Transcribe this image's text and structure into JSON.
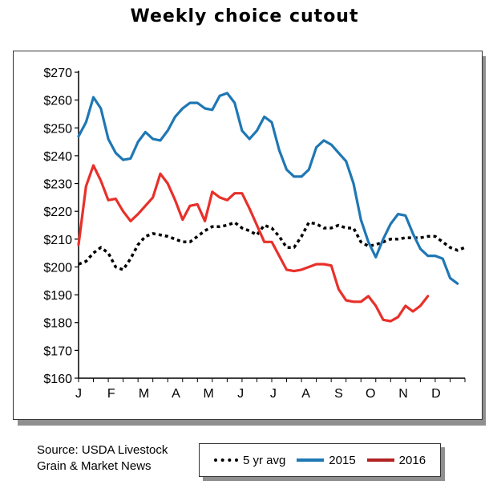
{
  "chart_data": {
    "type": "line",
    "title": "Weekly choice cutout",
    "source_lines": [
      "Source: USDA Livestock",
      "Grain & Market News"
    ],
    "y_ticks": [
      "$270",
      "$260",
      "$250",
      "$240",
      "$230",
      "$220",
      "$210",
      "$200",
      "$190",
      "$180",
      "$170",
      "$160"
    ],
    "ylim": [
      160,
      270
    ],
    "x_ticks": [
      "J",
      "F",
      "M",
      "A",
      "M",
      "J",
      "J",
      "A",
      "S",
      "O",
      "N",
      "D"
    ],
    "xlim": [
      0,
      52
    ],
    "grid": false,
    "legend_position": "bottom-right",
    "series": [
      {
        "name": "5 yr avg",
        "color": "#000000",
        "dash": "dotted",
        "values": [
          201,
          202,
          205,
          207,
          205,
          200,
          199,
          203,
          208,
          211,
          212,
          211.5,
          211,
          210,
          209,
          209,
          211,
          213,
          214.5,
          214.5,
          215,
          216,
          214,
          213,
          211.5,
          215,
          214,
          211,
          207,
          207,
          211,
          216,
          215.5,
          214,
          214,
          215,
          214,
          214,
          209,
          207.5,
          208,
          209,
          210,
          210,
          210.5,
          210.5,
          210.5,
          211,
          211,
          209,
          207,
          206,
          207
        ]
      },
      {
        "name": "2015",
        "color": "#1f77b4",
        "dash": "solid",
        "values": [
          247,
          252,
          261,
          257,
          246,
          241,
          238.5,
          239,
          245,
          248.5,
          246,
          245.5,
          249,
          254,
          257,
          259,
          259,
          257,
          256.5,
          261.5,
          262.5,
          259,
          249,
          246,
          249,
          254,
          252,
          242,
          235,
          232.5,
          232.5,
          235,
          243,
          245.5,
          244,
          241,
          238,
          230,
          217,
          209,
          203.5,
          210,
          215.5,
          219,
          218.5,
          212,
          206.5,
          204,
          204,
          203,
          196,
          194
        ]
      },
      {
        "name": "2016",
        "color": "#e8302a",
        "dash": "solid",
        "values": [
          208,
          229,
          236.5,
          231,
          224,
          224.5,
          220,
          216.5,
          219,
          222,
          225,
          233.5,
          230,
          224,
          217,
          222,
          222.5,
          216.5,
          227,
          225,
          224,
          226.5,
          226.5,
          221,
          215,
          209,
          209,
          204,
          199,
          198.5,
          199,
          200,
          201,
          201,
          200.5,
          192,
          188,
          187.5,
          187.5,
          189.5,
          186,
          181,
          180.5,
          182,
          186,
          184,
          186,
          189.5
        ]
      }
    ]
  }
}
